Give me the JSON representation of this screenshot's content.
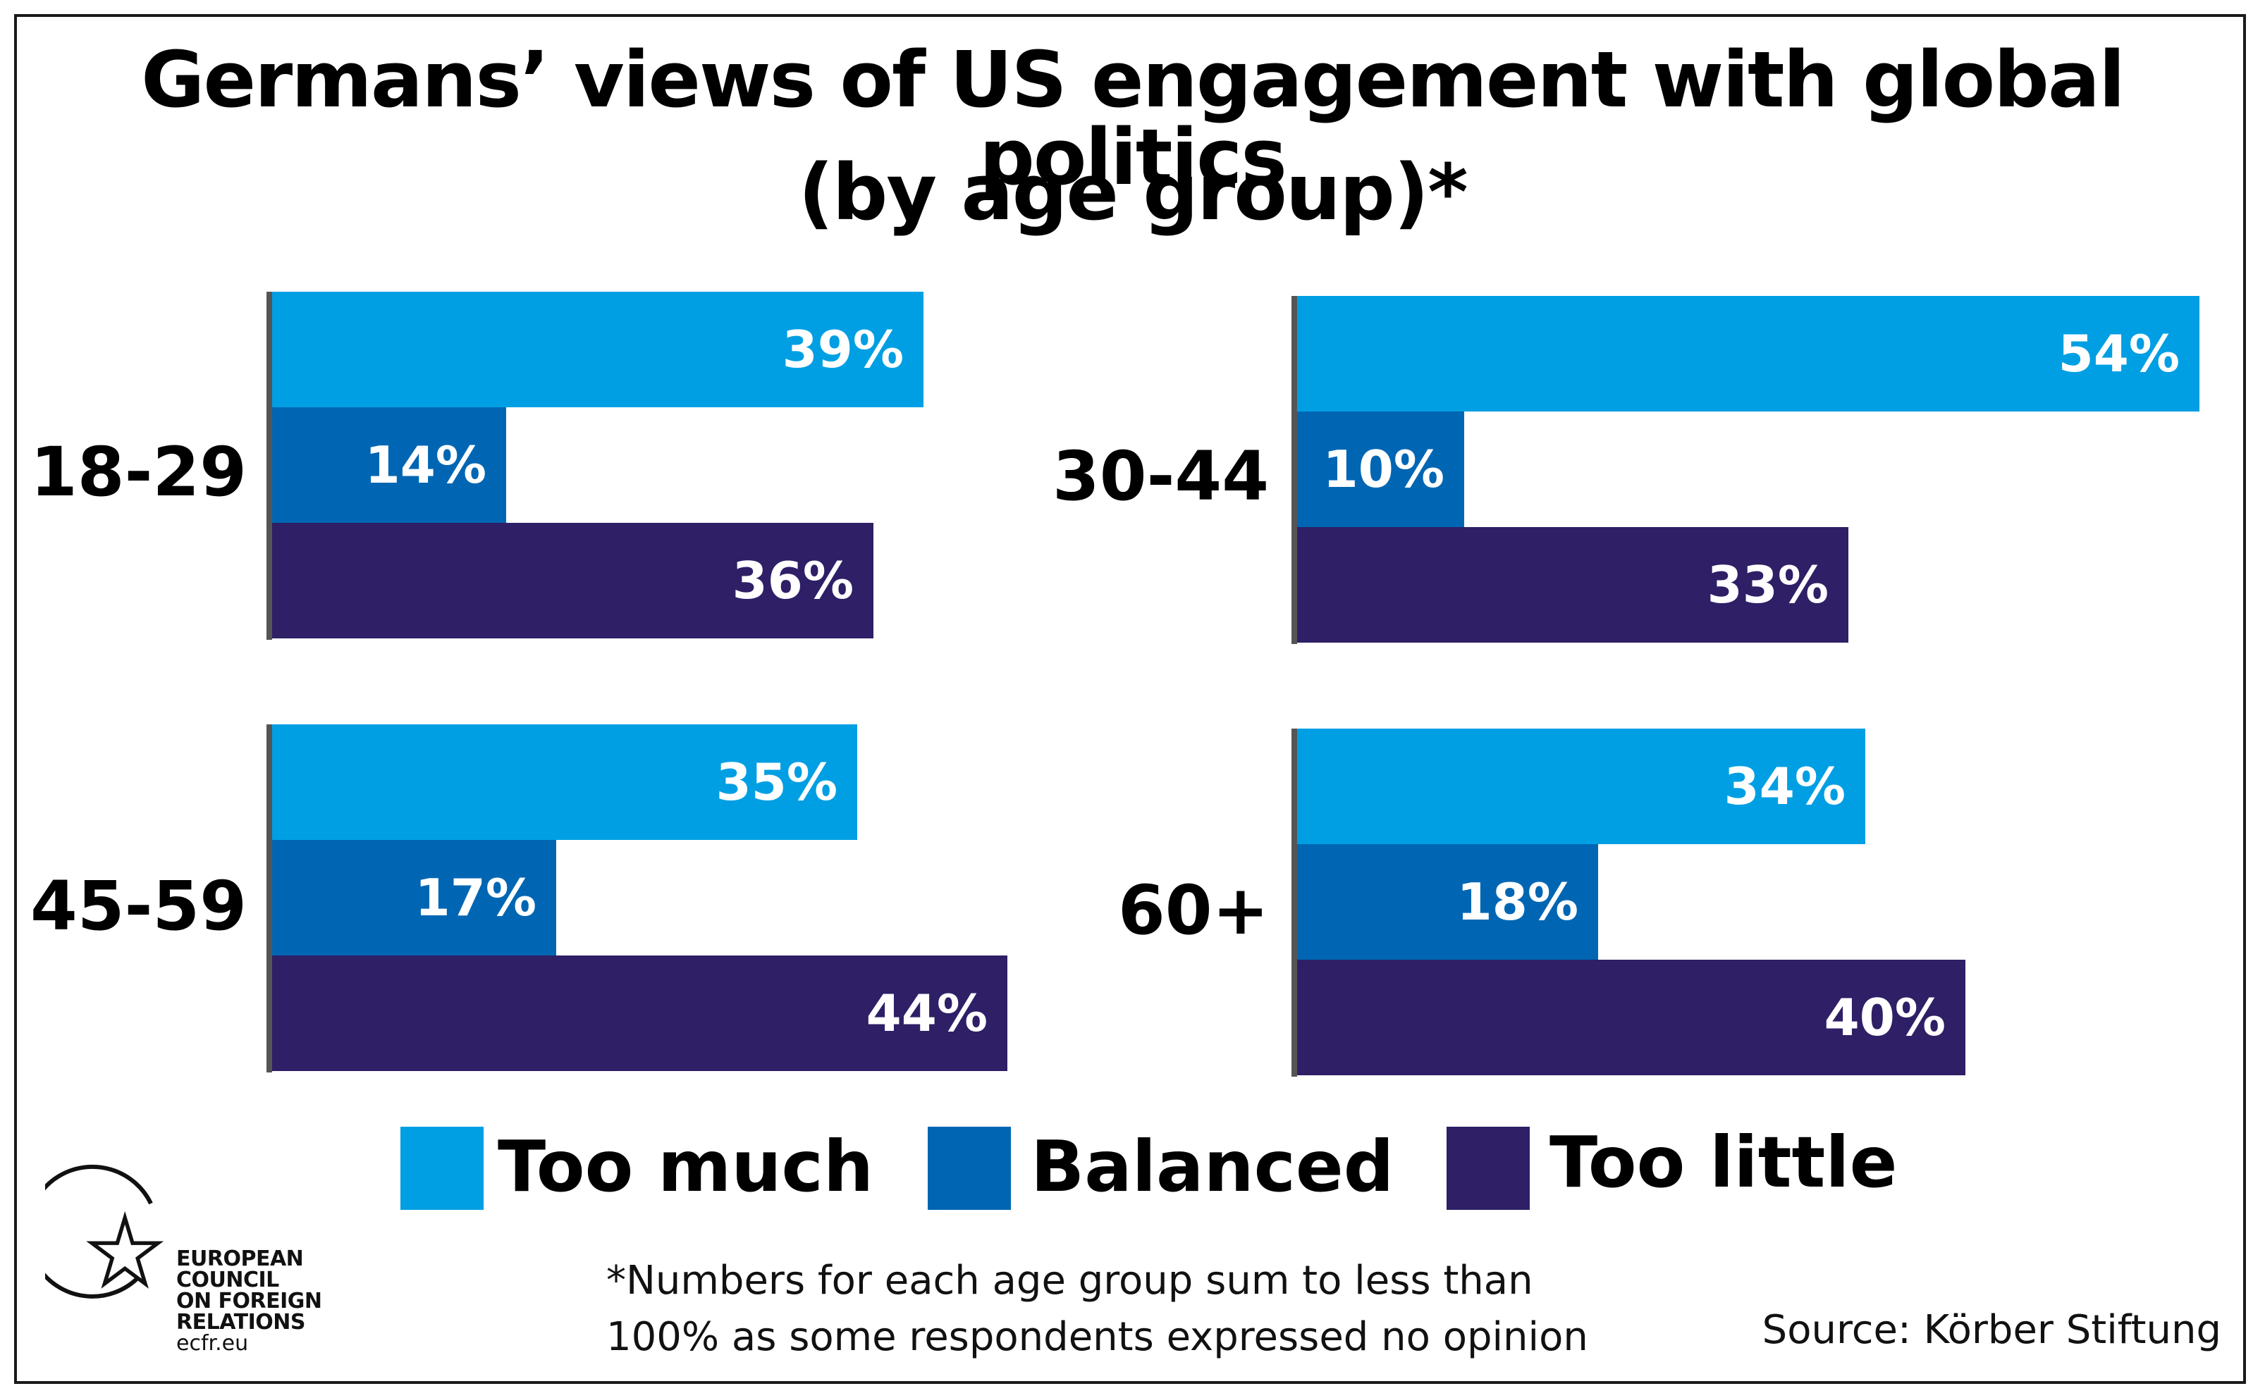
{
  "chart_data": {
    "type": "bar",
    "orientation": "horizontal",
    "title": "Germans’ views of US engagement with global politics",
    "subtitle": "(by age group)*",
    "groups": [
      "18-29",
      "30-44",
      "45-59",
      "60+"
    ],
    "series": [
      {
        "name": "Too much",
        "color": "#009fe3",
        "values": [
          39,
          54,
          35,
          34
        ]
      },
      {
        "name": "Balanced",
        "color": "#0066b3",
        "values": [
          14,
          10,
          17,
          18
        ]
      },
      {
        "name": "Too little",
        "color": "#2e1f66",
        "values": [
          36,
          33,
          44,
          40
        ]
      }
    ],
    "value_unit": "%",
    "legend_position": "bottom",
    "grid": false
  },
  "legend": {
    "items": [
      "Too much",
      "Balanced",
      "Too little"
    ]
  },
  "footnote": {
    "line1": "*Numbers for each age group sum to less than",
    "line2": "100% as some respondents expressed no opinion"
  },
  "source": "Source: Körber Stiftung",
  "logo": {
    "line1": "EUROPEAN",
    "line2": "COUNCIL",
    "line3": "ON FOREIGN",
    "line4": "RELATIONS",
    "url": "ecfr.eu"
  }
}
